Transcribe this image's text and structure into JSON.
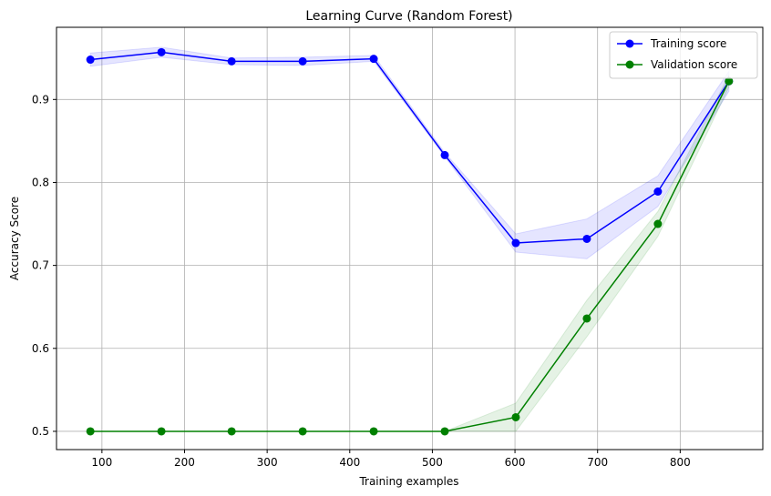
{
  "chart_data": {
    "type": "line",
    "title": "Learning Curve (Random Forest)",
    "xlabel": "Training examples",
    "ylabel": "Accuracy Score",
    "xlim": [
      45,
      900
    ],
    "ylim": [
      0.478,
      0.987
    ],
    "xticks": [
      100,
      200,
      300,
      400,
      500,
      600,
      700,
      800
    ],
    "yticks": [
      0.5,
      0.6,
      0.7,
      0.8,
      0.9
    ],
    "grid": true,
    "legend_position": "top-right",
    "x": [
      86,
      172,
      257,
      343,
      429,
      515,
      601,
      687,
      773,
      859
    ],
    "series": [
      {
        "name": "Training score",
        "color": "#0000ff",
        "band_color": "#0000ff",
        "values": [
          0.948,
          0.957,
          0.946,
          0.946,
          0.949,
          0.833,
          0.727,
          0.732,
          0.789,
          0.922
        ],
        "band_lower": [
          0.94,
          0.951,
          0.942,
          0.941,
          0.946,
          0.831,
          0.716,
          0.708,
          0.771,
          0.91
        ],
        "band_upper": [
          0.956,
          0.963,
          0.95,
          0.951,
          0.953,
          0.836,
          0.738,
          0.756,
          0.808,
          0.934
        ]
      },
      {
        "name": "Validation score",
        "color": "#008000",
        "band_color": "#008000",
        "values": [
          0.5,
          0.5,
          0.5,
          0.5,
          0.5,
          0.5,
          0.517,
          0.636,
          0.75,
          0.922
        ],
        "band_lower": [
          0.5,
          0.5,
          0.5,
          0.5,
          0.5,
          0.5,
          0.5,
          0.614,
          0.735,
          0.915
        ],
        "band_upper": [
          0.5,
          0.5,
          0.5,
          0.5,
          0.5,
          0.5,
          0.534,
          0.658,
          0.765,
          0.929
        ]
      }
    ]
  }
}
